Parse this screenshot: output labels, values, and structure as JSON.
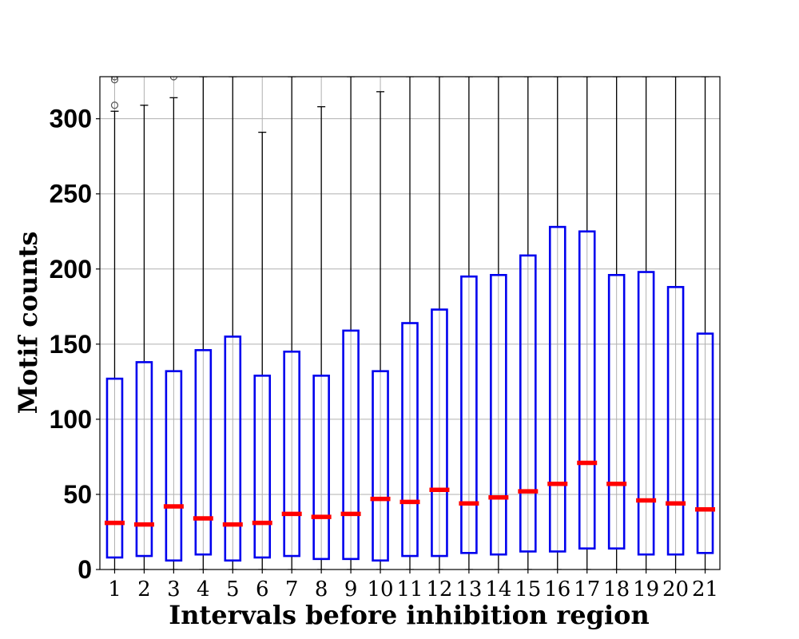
{
  "chart_data": {
    "type": "box",
    "title": "",
    "xlabel": "Intervals before inhibition region",
    "ylabel": "Motif counts",
    "ylim": [
      0,
      328
    ],
    "yticks": [
      0,
      50,
      100,
      150,
      200,
      250,
      300
    ],
    "grid": true,
    "colors": {
      "box": "#0000ee",
      "median": "#ff0000",
      "whisker": "#000000",
      "grid": "#b0b0b0",
      "outlier": "#555555"
    },
    "categories": [
      "1",
      "2",
      "3",
      "4",
      "5",
      "6",
      "7",
      "8",
      "9",
      "10",
      "11",
      "12",
      "13",
      "14",
      "15",
      "16",
      "17",
      "18",
      "19",
      "20",
      "21"
    ],
    "boxes": [
      {
        "q1": 8,
        "median": 31,
        "q3": 127,
        "whisker_low": 0,
        "whisker_high": 305,
        "outliers": [
          309,
          326,
          328
        ]
      },
      {
        "q1": 9,
        "median": 30,
        "q3": 138,
        "whisker_low": 0,
        "whisker_high": 309,
        "outliers": []
      },
      {
        "q1": 6,
        "median": 42,
        "q3": 132,
        "whisker_low": 0,
        "whisker_high": 314,
        "outliers": [
          328
        ]
      },
      {
        "q1": 10,
        "median": 34,
        "q3": 146,
        "whisker_low": 0,
        "whisker_high": 328,
        "outliers": []
      },
      {
        "q1": 6,
        "median": 30,
        "q3": 155,
        "whisker_low": 0,
        "whisker_high": 328,
        "outliers": []
      },
      {
        "q1": 8,
        "median": 31,
        "q3": 129,
        "whisker_low": 0,
        "whisker_high": 291,
        "outliers": []
      },
      {
        "q1": 9,
        "median": 37,
        "q3": 145,
        "whisker_low": 0,
        "whisker_high": 328,
        "outliers": []
      },
      {
        "q1": 7,
        "median": 35,
        "q3": 129,
        "whisker_low": 0,
        "whisker_high": 308,
        "outliers": []
      },
      {
        "q1": 7,
        "median": 37,
        "q3": 159,
        "whisker_low": 0,
        "whisker_high": 328,
        "outliers": []
      },
      {
        "q1": 6,
        "median": 47,
        "q3": 132,
        "whisker_low": 0,
        "whisker_high": 318,
        "outliers": []
      },
      {
        "q1": 9,
        "median": 45,
        "q3": 164,
        "whisker_low": 0,
        "whisker_high": 328,
        "outliers": []
      },
      {
        "q1": 9,
        "median": 53,
        "q3": 173,
        "whisker_low": 0,
        "whisker_high": 328,
        "outliers": []
      },
      {
        "q1": 11,
        "median": 44,
        "q3": 195,
        "whisker_low": 0,
        "whisker_high": 328,
        "outliers": []
      },
      {
        "q1": 10,
        "median": 48,
        "q3": 196,
        "whisker_low": 0,
        "whisker_high": 328,
        "outliers": []
      },
      {
        "q1": 12,
        "median": 52,
        "q3": 209,
        "whisker_low": 0,
        "whisker_high": 328,
        "outliers": []
      },
      {
        "q1": 12,
        "median": 57,
        "q3": 228,
        "whisker_low": 0,
        "whisker_high": 328,
        "outliers": []
      },
      {
        "q1": 14,
        "median": 71,
        "q3": 225,
        "whisker_low": 0,
        "whisker_high": 328,
        "outliers": []
      },
      {
        "q1": 14,
        "median": 57,
        "q3": 196,
        "whisker_low": 0,
        "whisker_high": 328,
        "outliers": []
      },
      {
        "q1": 10,
        "median": 46,
        "q3": 198,
        "whisker_low": 0,
        "whisker_high": 328,
        "outliers": []
      },
      {
        "q1": 10,
        "median": 44,
        "q3": 188,
        "whisker_low": 0,
        "whisker_high": 328,
        "outliers": []
      },
      {
        "q1": 11,
        "median": 40,
        "q3": 157,
        "whisker_low": 0,
        "whisker_high": 328,
        "outliers": []
      }
    ]
  }
}
